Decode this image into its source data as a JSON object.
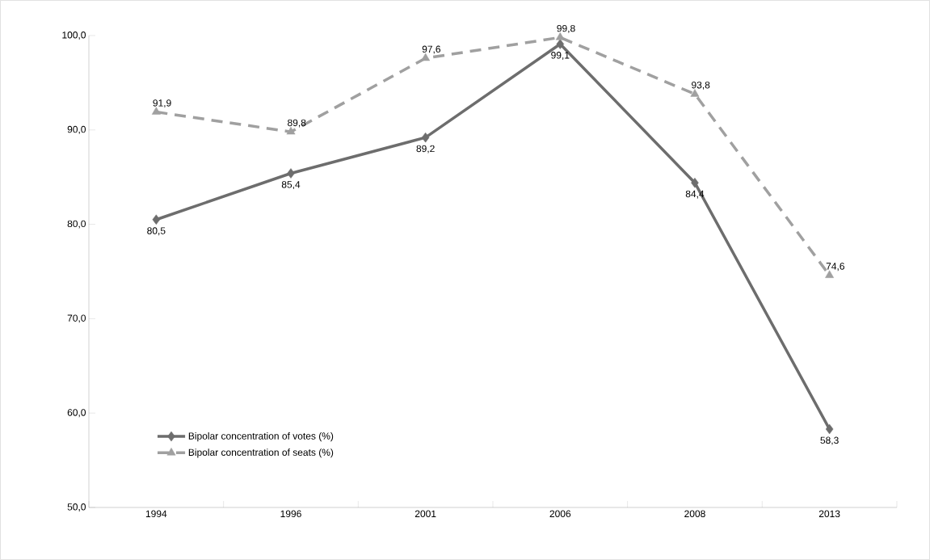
{
  "chart_data": {
    "type": "line",
    "categories": [
      "1994",
      "1996",
      "2001",
      "2006",
      "2008",
      "2013"
    ],
    "ylim": [
      50,
      100
    ],
    "yticks": [
      {
        "value": 50,
        "label": "50,0"
      },
      {
        "value": 60,
        "label": "60,0"
      },
      {
        "value": 70,
        "label": "70,0"
      },
      {
        "value": 80,
        "label": "80,0"
      },
      {
        "value": 90,
        "label": "90,0"
      },
      {
        "value": 100,
        "label": "100,0"
      }
    ],
    "legend": "bottom left",
    "series": [
      {
        "name": "Bipolar concentration of votes (%)",
        "color": "#6d6d6d",
        "marker": "diamond",
        "line_style": "solid",
        "values": [
          80.5,
          85.4,
          89.2,
          99.1,
          84.4,
          58.3
        ],
        "value_labels": [
          "80,5",
          "85,4",
          "89,2",
          "99,1",
          "84,4",
          "58,3"
        ]
      },
      {
        "name": "Bipolar concentration of seats (%)",
        "color": "#a0a0a0",
        "marker": "triangle",
        "line_style": "dashed",
        "values": [
          91.9,
          89.8,
          97.6,
          99.8,
          93.8,
          74.6
        ],
        "value_labels": [
          "91,9",
          "89,8",
          "97,6",
          "99,8",
          "93,8",
          "74,6"
        ]
      }
    ]
  }
}
